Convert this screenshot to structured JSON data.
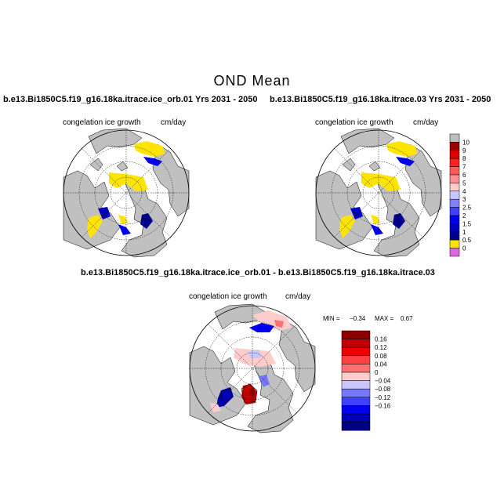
{
  "title": "OND Mean",
  "panels": [
    {
      "run_label": "b.e13.Bi1850C5.f19_g16.18ka.itrace.ice_orb.01  Yrs 2031 - 2050",
      "variable": "congelation ice growth",
      "units": "cm/day"
    },
    {
      "run_label": "b.e13.Bi1850C5.f19_g16.18ka.itrace.03  Yrs 2031 - 2050",
      "variable": "congelation ice growth",
      "units": "cm/day"
    }
  ],
  "diff_panel": {
    "label": "b.e13.Bi1850C5.f19_g16.18ka.itrace.ice_orb.01 - b.e13.Bi1850C5.f19_g16.18ka.itrace.03",
    "variable": "congelation ice growth",
    "units": "cm/day",
    "min_label": "MIN =",
    "min_value": "−0.34",
    "max_label": "MAX =",
    "max_value": "0.67"
  },
  "colorbar_abs": {
    "labels": [
      "10",
      "9",
      "8",
      "7",
      "6",
      "5",
      "4",
      "3",
      "2.5",
      "2",
      "1.5",
      "1",
      "0.5",
      "0"
    ],
    "colors": [
      "#bebebe",
      "#a00000",
      "#dc0000",
      "#ff2020",
      "#ff5a5a",
      "#ff9090",
      "#ffcccc",
      "#c8c8ff",
      "#8080ff",
      "#4040ff",
      "#0000ee",
      "#0000c0",
      "#00008c",
      "#ffe400",
      "#e066e0"
    ]
  },
  "colorbar_diff": {
    "labels": [
      "0.16",
      "0.12",
      "0.08",
      "0.04",
      "0",
      "−0.04",
      "−0.08",
      "−0.12",
      "−0.16"
    ],
    "colors": [
      "#8c0000",
      "#c00000",
      "#ee0000",
      "#ff4040",
      "#ff7070",
      "#ffcccc",
      "#c8c8ff",
      "#7878ff",
      "#4040ff",
      "#0000ee",
      "#0000b4",
      "#000080"
    ]
  },
  "colors": {
    "land": "#c0c0c0",
    "ocean": "#ffffff",
    "zero_contour": "#000000"
  }
}
